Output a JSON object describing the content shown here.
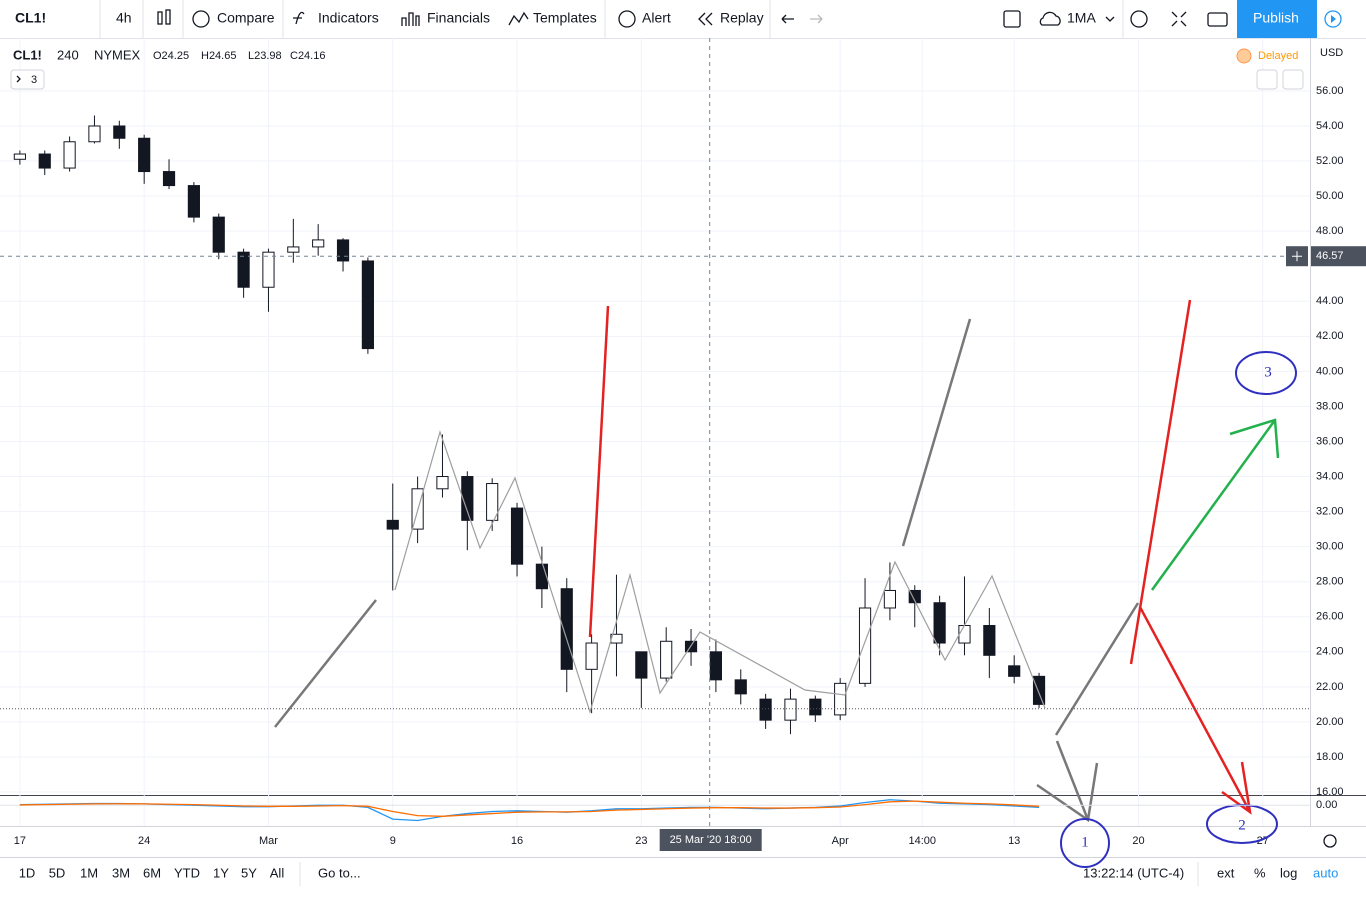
{
  "toolbar": {
    "symbol": "CL1!",
    "interval": "4h",
    "compare": "Compare",
    "indicators": "Indicators",
    "financials": "Financials",
    "templates": "Templates",
    "alert": "Alert",
    "replay": "Replay",
    "ma": "1MA",
    "publish": "Publish"
  },
  "legend": {
    "symbol": "CL1!",
    "interval": "240",
    "exchange": "NYMEX",
    "open": "O24.25",
    "high": "H24.65",
    "low": "L23.98",
    "close": "C24.16",
    "status": "Delayed",
    "currency": "USD",
    "collapsed_count": "3"
  },
  "chart_data": {
    "type": "candlestick",
    "color": "#131722",
    "x": [
      0,
      1,
      2,
      3,
      4,
      5,
      6,
      7,
      8,
      9,
      10,
      11,
      12,
      13,
      14,
      15,
      16,
      17,
      18,
      19,
      20,
      21,
      22,
      23,
      24,
      25,
      26,
      27,
      28,
      29,
      30,
      31,
      32,
      33,
      34,
      35,
      36,
      37,
      38,
      39,
      40,
      41
    ],
    "open": [
      52.1,
      52.4,
      51.6,
      53.1,
      54.0,
      53.3,
      51.4,
      50.6,
      48.8,
      46.8,
      44.8,
      46.8,
      47.1,
      47.5,
      46.3,
      31.5,
      31.0,
      33.3,
      34.0,
      31.5,
      32.2,
      29.0,
      27.6,
      23.0,
      24.5,
      24.0,
      22.5,
      24.6,
      24.0,
      22.4,
      21.3,
      20.1,
      21.3,
      20.4,
      22.2,
      26.5,
      27.5,
      26.8,
      24.5,
      25.5,
      23.2,
      22.6
    ],
    "high": [
      52.6,
      52.6,
      53.4,
      54.6,
      54.3,
      53.5,
      52.1,
      50.8,
      49.0,
      47.0,
      47.0,
      48.7,
      48.4,
      47.6,
      46.5,
      33.6,
      34.0,
      36.4,
      34.3,
      33.9,
      32.5,
      30.0,
      28.2,
      25.0,
      28.4,
      24.0,
      25.4,
      25.3,
      24.7,
      23.0,
      21.6,
      21.9,
      21.5,
      22.5,
      28.2,
      29.1,
      27.8,
      27.2,
      28.3,
      26.5,
      23.8,
      22.8
    ],
    "low": [
      51.8,
      51.2,
      51.4,
      53.0,
      52.7,
      50.7,
      50.4,
      48.5,
      46.4,
      44.2,
      43.4,
      46.2,
      46.6,
      45.7,
      41.0,
      27.5,
      30.2,
      32.8,
      29.8,
      30.9,
      28.3,
      26.5,
      21.7,
      20.5,
      22.6,
      20.8,
      22.3,
      23.2,
      21.7,
      21.0,
      19.6,
      19.3,
      20.0,
      20.1,
      22.0,
      25.8,
      25.4,
      23.8,
      23.8,
      22.5,
      22.2,
      20.8
    ],
    "close": [
      52.4,
      51.6,
      53.1,
      54.0,
      53.3,
      51.4,
      50.6,
      48.8,
      46.8,
      44.8,
      46.8,
      47.1,
      47.5,
      46.3,
      41.3,
      31.0,
      33.3,
      34.0,
      31.5,
      33.6,
      29.0,
      27.6,
      23.0,
      24.5,
      25.0,
      22.5,
      24.6,
      24.0,
      22.4,
      21.6,
      20.1,
      21.3,
      20.4,
      22.2,
      26.5,
      27.5,
      26.8,
      24.5,
      25.5,
      23.8,
      22.6,
      21.0
    ],
    "xlim": [
      -0.8,
      51.9
    ],
    "xticks": [
      {
        "value": 0,
        "label": "17"
      },
      {
        "value": 5,
        "label": "24"
      },
      {
        "value": 10,
        "label": "Mar"
      },
      {
        "value": 15,
        "label": "9"
      },
      {
        "value": 20,
        "label": "16"
      },
      {
        "value": 25,
        "label": "23"
      },
      {
        "value": 33,
        "label": "Apr"
      },
      {
        "value": 36.3,
        "label": "14:00"
      },
      {
        "value": 40,
        "label": "13"
      },
      {
        "value": 45,
        "label": "20"
      },
      {
        "value": 50,
        "label": "27"
      }
    ],
    "ylim": [
      15.83,
      59.02
    ],
    "yticks": [
      {
        "value": 56,
        "label": "56.00"
      },
      {
        "value": 54,
        "label": "54.00"
      },
      {
        "value": 52,
        "label": "52.00"
      },
      {
        "value": 50,
        "label": "50.00"
      },
      {
        "value": 48,
        "label": "48.00"
      },
      {
        "value": 44,
        "label": "44.00"
      },
      {
        "value": 42,
        "label": "42.00"
      },
      {
        "value": 40,
        "label": "40.00"
      },
      {
        "value": 38,
        "label": "38.00"
      },
      {
        "value": 36,
        "label": "36.00"
      },
      {
        "value": 34,
        "label": "34.00"
      },
      {
        "value": 32,
        "label": "32.00"
      },
      {
        "value": 30,
        "label": "30.00"
      },
      {
        "value": 28,
        "label": "28.00"
      },
      {
        "value": 26,
        "label": "26.00"
      },
      {
        "value": 24,
        "label": "24.00"
      },
      {
        "value": 22,
        "label": "22.00"
      },
      {
        "value": 20,
        "label": "20.00"
      },
      {
        "value": 18,
        "label": "18.00"
      },
      {
        "value": 16,
        "label": "16.00"
      }
    ],
    "grid": true,
    "last_price": 20.75,
    "crosshair": {
      "x": 27.75,
      "x_label": "25 Mar '20 18:00",
      "price": 46.57
    },
    "indicator": {
      "ylim": [
        -3,
        1.2
      ],
      "yticks": [
        {
          "value": 0,
          "label": "0.00"
        }
      ],
      "series": [
        {
          "color": "#2196f3",
          "values": [
            0.1,
            0.15,
            0.2,
            0.25,
            0.25,
            0.2,
            0.1,
            0,
            -0.1,
            -0.2,
            -0.2,
            -0.1,
            0,
            0,
            -0.3,
            -2.0,
            -2.2,
            -1.6,
            -1.2,
            -0.9,
            -0.8,
            -0.9,
            -1.0,
            -0.8,
            -0.5,
            -0.5,
            -0.4,
            -0.3,
            -0.3,
            -0.4,
            -0.5,
            -0.4,
            -0.3,
            -0.1,
            0.4,
            0.8,
            0.6,
            0.3,
            0.2,
            0.1,
            -0.1,
            -0.3
          ]
        },
        {
          "color": "#ff6d00",
          "values": [
            0.05,
            0.1,
            0.15,
            0.2,
            0.22,
            0.2,
            0.15,
            0.1,
            0,
            -0.1,
            -0.15,
            -0.15,
            -0.1,
            -0.05,
            -0.15,
            -0.9,
            -1.5,
            -1.6,
            -1.4,
            -1.2,
            -1.0,
            -0.95,
            -0.95,
            -0.9,
            -0.7,
            -0.6,
            -0.5,
            -0.4,
            -0.35,
            -0.35,
            -0.4,
            -0.4,
            -0.35,
            -0.25,
            0.1,
            0.5,
            0.6,
            0.45,
            0.3,
            0.2,
            0.05,
            -0.15
          ]
        }
      ]
    }
  },
  "annotations": {
    "wave_1": "1",
    "wave_2": "2",
    "wave_3": "3"
  },
  "bottom_bar": {
    "ranges": [
      "1D",
      "5D",
      "1M",
      "3M",
      "6M",
      "YTD",
      "1Y",
      "5Y",
      "All"
    ],
    "goto": "Go to...",
    "clock": "13:22:14 (UTC-4)",
    "ext": "ext",
    "percent": "%",
    "log": "log",
    "auto": "auto"
  }
}
